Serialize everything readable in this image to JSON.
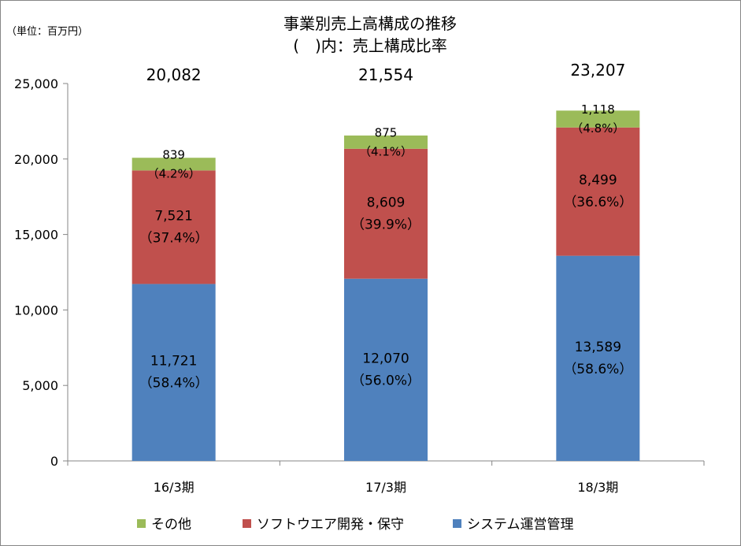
{
  "chart_data": {
    "type": "bar",
    "stacked": true,
    "title": "事業別売上高構成の推移",
    "subtitle": "(　)内：売上構成比率",
    "unit_label": "（単位：百万円）",
    "categories": [
      "16/3期",
      "17/3期",
      "18/3期"
    ],
    "totals": [
      "20,082",
      "21,554",
      "23,207"
    ],
    "ylim": [
      0,
      25000
    ],
    "yticks": [
      0,
      5000,
      10000,
      15000,
      20000,
      25000
    ],
    "ytick_labels": [
      "0",
      "5,000",
      "10,000",
      "15,000",
      "20,000",
      "25,000"
    ],
    "grid": false,
    "legend_position": "bottom",
    "series": [
      {
        "name": "システム運営管理",
        "color": "#4f81bd",
        "values": [
          11721,
          12070,
          13589
        ],
        "value_labels": [
          "11,721",
          "12,070",
          "13,589"
        ],
        "pct_labels": [
          "（58.4%）",
          "（56.0%）",
          "（58.6%）"
        ]
      },
      {
        "name": "ソフトウエア開発・保守",
        "color": "#c0504d",
        "values": [
          7521,
          8609,
          8499
        ],
        "value_labels": [
          "7,521",
          "8,609",
          "8,499"
        ],
        "pct_labels": [
          "（37.4%）",
          "（39.9%）",
          "（36.6%）"
        ]
      },
      {
        "name": "その他",
        "color": "#9bbb59",
        "values": [
          839,
          875,
          1118
        ],
        "value_labels": [
          "839",
          "875",
          "1,118"
        ],
        "pct_labels": [
          "（4.2%）",
          "（4.1%）",
          "（4.8%）"
        ]
      }
    ],
    "legend_order": [
      2,
      1,
      0
    ]
  }
}
